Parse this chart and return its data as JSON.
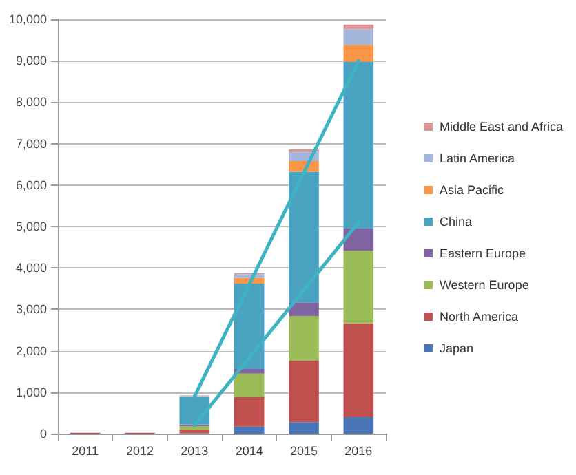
{
  "chart_data": {
    "type": "bar",
    "stacked": true,
    "categories": [
      "2011",
      "2012",
      "2013",
      "2014",
      "2015",
      "2016"
    ],
    "series": [
      {
        "name": "Japan",
        "color": "#4a76b8",
        "values": [
          null,
          null,
          10,
          170,
          280,
          400
        ]
      },
      {
        "name": "North America",
        "color": "#c0504d",
        "values": [
          20,
          20,
          90,
          720,
          1480,
          2260
        ]
      },
      {
        "name": "Western Europe",
        "color": "#9bbb59",
        "values": [
          null,
          null,
          80,
          560,
          1080,
          1760
        ]
      },
      {
        "name": "Eastern Europe",
        "color": "#8064a2",
        "values": [
          null,
          null,
          40,
          110,
          330,
          530
        ]
      },
      {
        "name": "China",
        "color": "#4aa3c0",
        "values": [
          null,
          null,
          680,
          2060,
          3150,
          4030
        ]
      },
      {
        "name": "Asia Pacific",
        "color": "#f79646",
        "values": [
          null,
          null,
          null,
          140,
          260,
          400
        ]
      },
      {
        "name": "Latin America",
        "color": "#a5b6dc",
        "values": [
          null,
          null,
          10,
          90,
          220,
          380
        ]
      },
      {
        "name": "Middle East and Africa",
        "color": "#d99694",
        "values": [
          null,
          null,
          10,
          30,
          60,
          110
        ]
      },
      {
        "type": "line",
        "color": "#3db3c4",
        "values": [
          null,
          null,
          900,
          null,
          null,
          9000
        ]
      },
      {
        "type": "line",
        "color": "#3db3c4",
        "values": [
          null,
          null,
          200,
          null,
          null,
          5100
        ]
      }
    ],
    "ylim": [
      0,
      10000
    ],
    "yticks": [
      {
        "value": 0,
        "label": "0"
      },
      {
        "value": 1000,
        "label": "1,000"
      },
      {
        "value": 2000,
        "label": "2,000"
      },
      {
        "value": 3000,
        "label": "3,000"
      },
      {
        "value": 4000,
        "label": "4,000"
      },
      {
        "value": 5000,
        "label": "5,000"
      },
      {
        "value": 6000,
        "label": "6,000"
      },
      {
        "value": 7000,
        "label": "7,000"
      },
      {
        "value": 8000,
        "label": "8,000"
      },
      {
        "value": 9000,
        "label": "9,000"
      },
      {
        "value": 10000,
        "label": "10,000"
      }
    ],
    "grid": "y",
    "legend": "right",
    "marker": "none",
    "line_style": "solid"
  }
}
